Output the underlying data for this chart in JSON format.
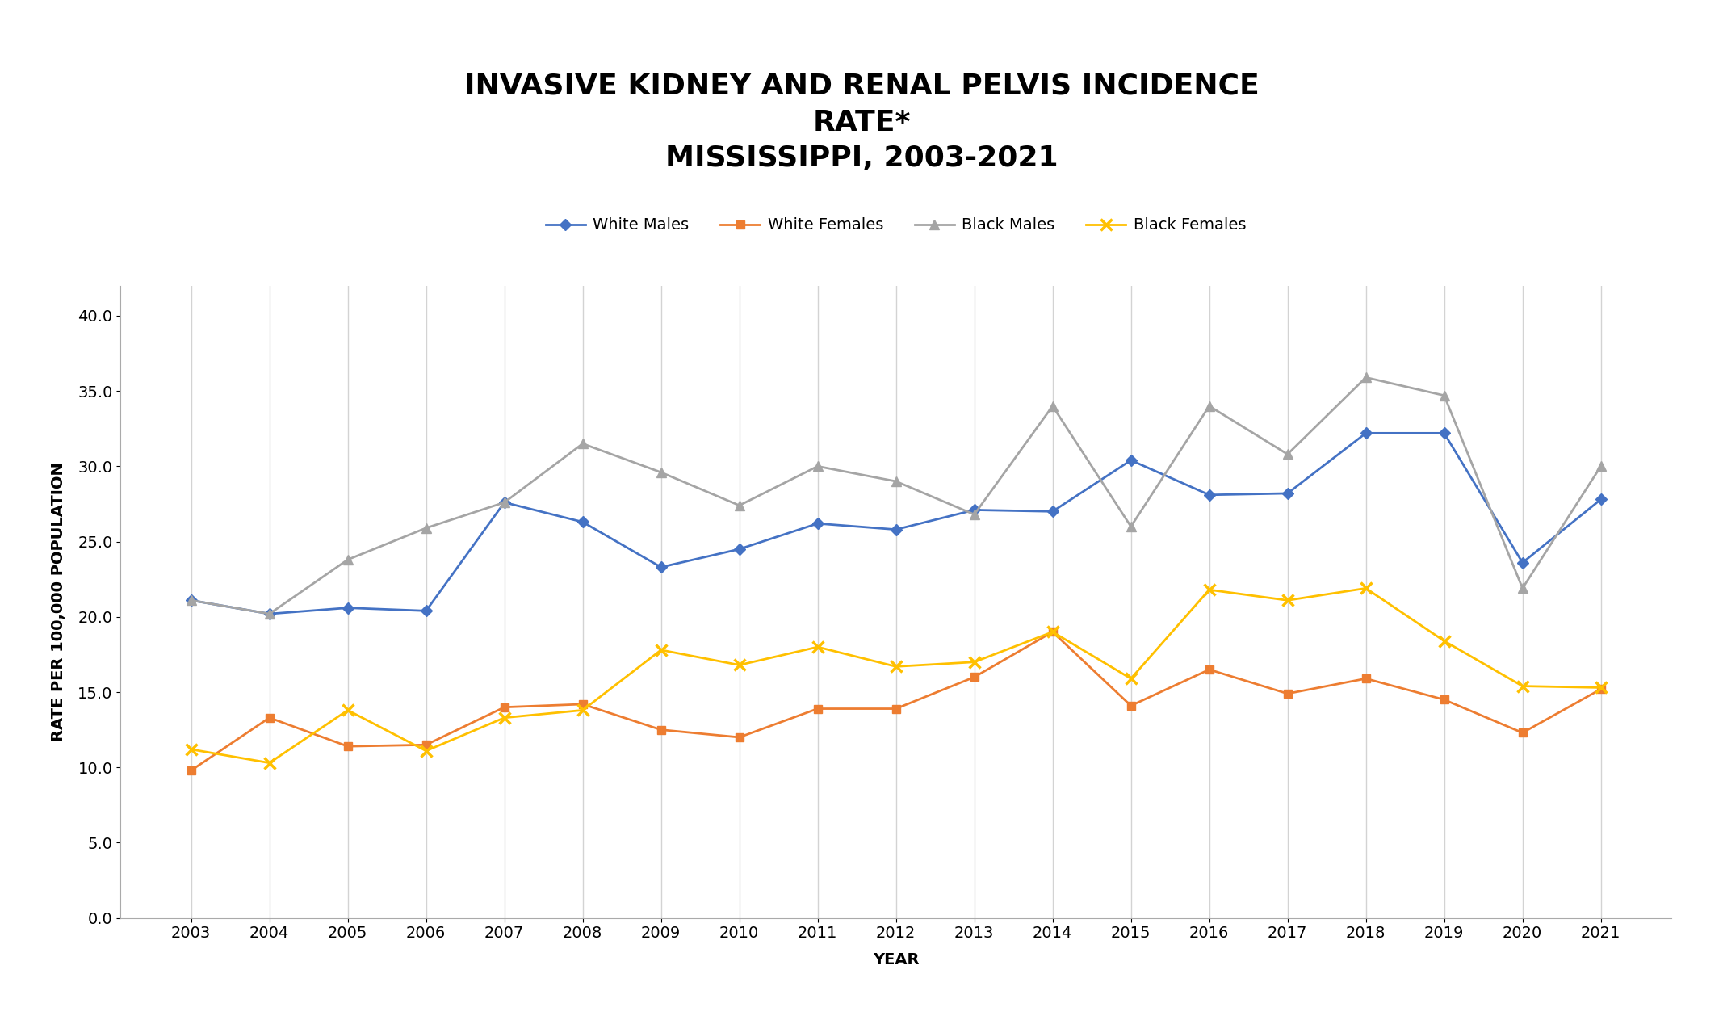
{
  "title_line1": "INVASIVE KIDNEY AND RENAL PELVIS INCIDENCE",
  "title_line2": "RATE*",
  "title_line3": "MISSISSIPPI, 2003-2021",
  "xlabel": "YEAR",
  "ylabel": "RATE PER 100,000 POPULATION",
  "years": [
    2003,
    2004,
    2005,
    2006,
    2007,
    2008,
    2009,
    2010,
    2011,
    2012,
    2013,
    2014,
    2015,
    2016,
    2017,
    2018,
    2019,
    2020,
    2021
  ],
  "white_males": [
    21.1,
    20.2,
    20.6,
    20.4,
    27.6,
    26.3,
    23.3,
    24.5,
    26.2,
    25.8,
    27.1,
    27.0,
    30.4,
    28.1,
    28.2,
    32.2,
    32.2,
    23.6,
    27.8
  ],
  "white_females": [
    9.8,
    13.3,
    11.4,
    11.5,
    14.0,
    14.2,
    12.5,
    12.0,
    13.9,
    13.9,
    16.0,
    19.0,
    14.1,
    16.5,
    14.9,
    15.9,
    14.5,
    12.3,
    15.2
  ],
  "black_males": [
    21.1,
    20.2,
    23.8,
    25.9,
    27.6,
    31.5,
    29.6,
    27.4,
    30.0,
    29.0,
    26.8,
    34.0,
    26.0,
    34.0,
    30.8,
    35.9,
    34.7,
    21.9,
    30.0
  ],
  "black_females": [
    11.2,
    10.3,
    13.8,
    11.1,
    13.3,
    13.8,
    17.8,
    16.8,
    18.0,
    16.7,
    17.0,
    19.0,
    15.9,
    21.8,
    21.1,
    21.9,
    18.4,
    15.4,
    15.3
  ],
  "white_males_color": "#4472C4",
  "white_females_color": "#ED7D31",
  "black_males_color": "#A5A5A5",
  "black_females_color": "#FFC000",
  "ylim": [
    0.0,
    42.0
  ],
  "yticks": [
    0.0,
    5.0,
    10.0,
    15.0,
    20.0,
    25.0,
    30.0,
    35.0,
    40.0
  ],
  "background_color": "#FFFFFF",
  "grid_color": "#D3D3D3",
  "title_fontsize": 26,
  "axis_label_fontsize": 14,
  "tick_fontsize": 14,
  "legend_fontsize": 14
}
